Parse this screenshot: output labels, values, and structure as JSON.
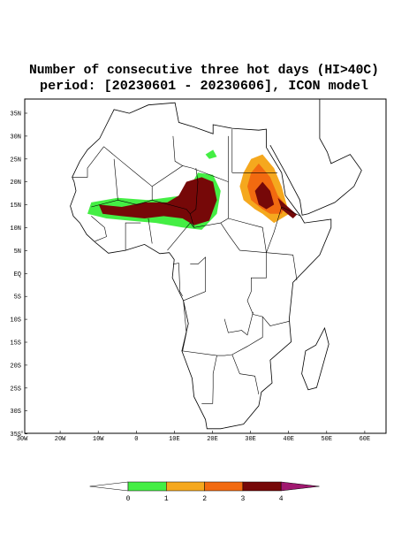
{
  "header": {
    "title": [
      "Number of consecutive three hot days (HI>40C)",
      "period: [20230601 - 20230606], ICON model"
    ]
  },
  "map": {
    "lat_labels": [
      "35N",
      "30N",
      "25N",
      "20N",
      "15N",
      "10N",
      "5N",
      "EQ",
      "5S",
      "10S",
      "15S",
      "20S",
      "25S",
      "30S",
      "35S"
    ],
    "lon_labels": [
      "30W",
      "20W",
      "10W",
      "0",
      "10E",
      "20E",
      "30E",
      "40E",
      "50E",
      "60E"
    ]
  },
  "colorbar": {
    "ticks": [
      0,
      1,
      2,
      3,
      4
    ],
    "colors": [
      "#ffffff",
      "#44ee44",
      "#f5a81e",
      "#f26a10",
      "#760808",
      "#a01870"
    ]
  }
}
